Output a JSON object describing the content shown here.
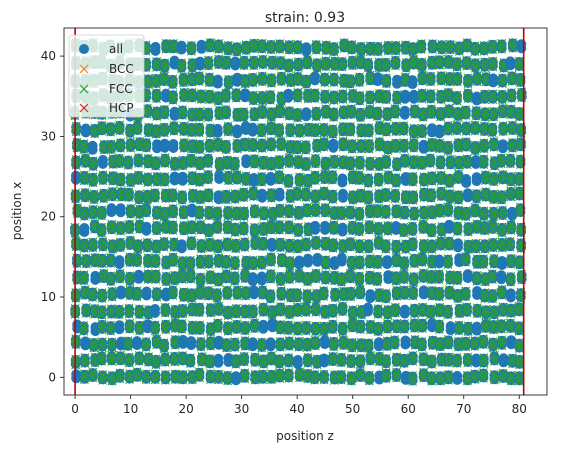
{
  "chart_data": {
    "type": "scatter",
    "title": "strain: 0.93",
    "xlabel": "position z",
    "ylabel": "position x",
    "xlim": [
      -2,
      85
    ],
    "ylim": [
      -2.2,
      43.5
    ],
    "xticks": [
      0,
      10,
      20,
      30,
      40,
      50,
      60,
      70,
      80
    ],
    "yticks": [
      0,
      10,
      20,
      30,
      40
    ],
    "legend_position": "top-left",
    "lattice": {
      "x_start": 0.2,
      "x_end": 80.8,
      "x_step": 1.6,
      "y_start": 0.1,
      "y_step": 2.05,
      "row_count": 21
    },
    "series": [
      {
        "name": "all",
        "marker": "circle",
        "color": "#1f77b4"
      },
      {
        "name": "BCC",
        "marker": "x",
        "color": "#ff7f0e"
      },
      {
        "name": "FCC",
        "marker": "x",
        "color": "#2ca02c"
      },
      {
        "name": "HCP",
        "marker": "x",
        "color": "#d62728"
      }
    ],
    "reference_lines": [
      {
        "x": 0,
        "color": "#c00000"
      },
      {
        "x": 80.8,
        "color": "#c00000"
      }
    ]
  }
}
